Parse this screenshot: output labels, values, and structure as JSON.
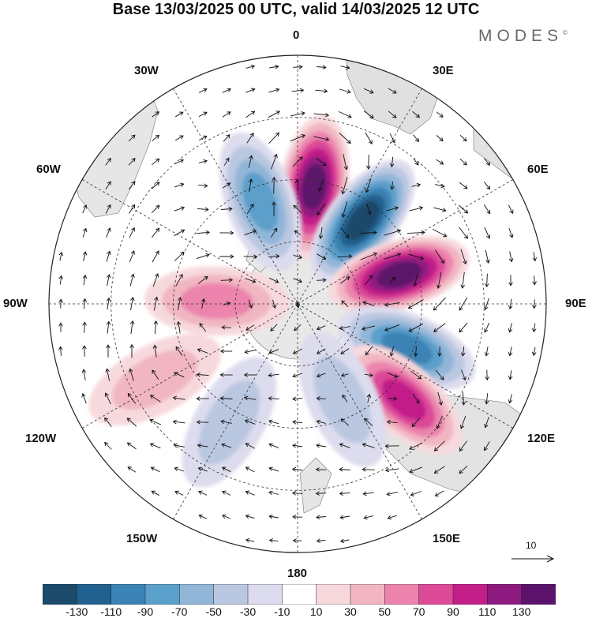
{
  "title": "Base 13/03/2025 00 UTC, valid 14/03/2025 12 UTC",
  "brand": "MODES",
  "brand_mark": "©",
  "projection": "south-polar-stereographic",
  "longitude_labels": {
    "top": "0",
    "top_right": "30E",
    "upper_right": "60E",
    "right": "90E",
    "lower_right": "120E",
    "bottom_right": "150E",
    "bottom": "180",
    "bottom_left": "150W",
    "lower_left": "120W",
    "left": "90W",
    "upper_left": "60W",
    "top_left": "30W"
  },
  "reference_vector": {
    "label": "10"
  },
  "colorbar": {
    "tick_labels": [
      "-130",
      "-110",
      "-90",
      "-70",
      "-50",
      "-30",
      "-10",
      "10",
      "30",
      "50",
      "70",
      "90",
      "110",
      "130"
    ],
    "colors": [
      "#1b4a6b",
      "#21618f",
      "#3b83b4",
      "#5b9fcb",
      "#92b6d8",
      "#bac7e0",
      "#dcdcee",
      "#ffffff",
      "#f7d9dd",
      "#f1b6c2",
      "#ec84ad",
      "#dc4a98",
      "#c21f89",
      "#8e1a80",
      "#5b136b"
    ]
  },
  "anomaly_centers": [
    {
      "lon": 8,
      "lat": -52,
      "value": 120
    },
    {
      "lon": -20,
      "lat": -55,
      "value": -70
    },
    {
      "lon": 38,
      "lat": -56,
      "value": -125
    },
    {
      "lon": 74,
      "lat": -56,
      "value": 115
    },
    {
      "lon": 112,
      "lat": -52,
      "value": -80
    },
    {
      "lon": 132,
      "lat": -44,
      "value": 80
    },
    {
      "lon": -88,
      "lat": -64,
      "value": 40
    },
    {
      "lon": -118,
      "lat": -38,
      "value": 30
    },
    {
      "lon": 155,
      "lat": -56,
      "value": -25
    },
    {
      "lon": -150,
      "lat": -46,
      "value": -20
    }
  ]
}
